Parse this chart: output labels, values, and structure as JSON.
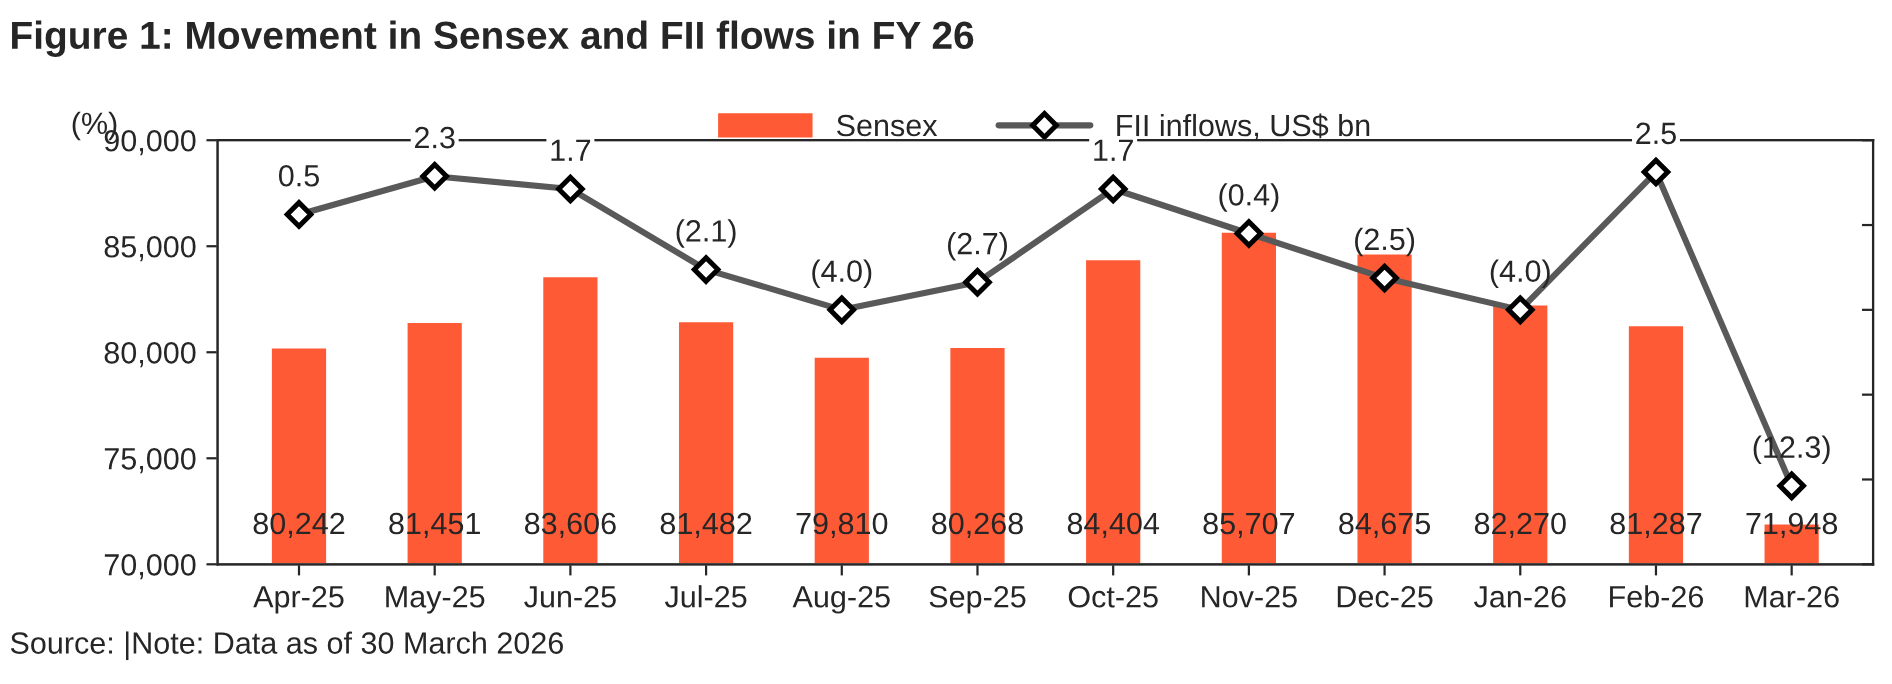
{
  "chart_data": {
    "type": "bar",
    "title": "Figure 1: Movement in Sensex and FII flows in FY 26",
    "ylabel": "(%)",
    "annotations": [
      "Source: |Note: Data as of 30 March 2026"
    ],
    "categories": [
      "Apr-25",
      "May-25",
      "Jun-25",
      "Jul-25",
      "Aug-25",
      "Sep-25",
      "Oct-25",
      "Nov-25",
      "Dec-25",
      "Jan-26",
      "Feb-26",
      "Mar-26"
    ],
    "series": [
      {
        "name": "Sensex",
        "color": "#ff5a36",
        "values": [
          80242,
          81451,
          83606,
          81482,
          79810,
          80268,
          84404,
          85707,
          84675,
          82270,
          81287,
          71948
        ],
        "value_labels": [
          "80,242",
          "81,451",
          "83,606",
          "81,482",
          "79,810",
          "80,268",
          "84,404",
          "85,707",
          "84,675",
          "82,270",
          "81,287",
          "71,948"
        ]
      },
      {
        "name": "FII inflows, US$ bn",
        "type": "line",
        "axis": "y2",
        "color": "#595959",
        "marker": "diamond",
        "values": [
          0.5,
          2.3,
          1.7,
          -2.1,
          -4.0,
          -2.7,
          1.7,
          -0.4,
          -2.5,
          -4.0,
          2.5,
          -12.3
        ],
        "value_labels": [
          "0.5",
          "2.3",
          "1.7",
          "(2.1)",
          "(4.0)",
          "(2.7)",
          "1.7",
          "(0.4)",
          "(2.5)",
          "(4.0)",
          "2.5",
          "(12.3)"
        ]
      }
    ],
    "ylim": [
      70000,
      90000
    ],
    "yticks": [
      {
        "value": 70000,
        "label": "70,000"
      },
      {
        "value": 75000,
        "label": "75,000"
      },
      {
        "value": 80000,
        "label": "80,000"
      },
      {
        "value": 85000,
        "label": "85,000"
      },
      {
        "value": 90000,
        "label": "90,000"
      }
    ],
    "y2lim": [
      -16,
      4
    ],
    "y2ticks": [
      {
        "value": -16,
        "label": null
      },
      {
        "value": -12,
        "label": null
      },
      {
        "value": -8,
        "label": null
      },
      {
        "value": -4,
        "label": null
      },
      {
        "value": 0,
        "label": null
      },
      {
        "value": 4,
        "label": null
      }
    ],
    "grid": false,
    "legend": "top"
  }
}
